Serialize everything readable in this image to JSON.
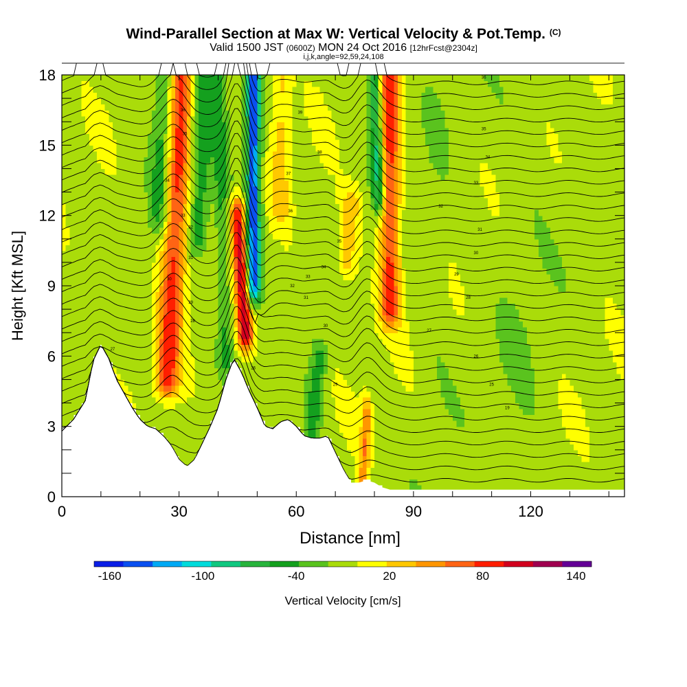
{
  "title": {
    "main": "Wind-Parallel Section at Max W: Vertical Velocity & Pot.Temp.",
    "mark": "(C)",
    "valid_a": "Valid 1500 JST",
    "valid_utc": "(0600Z)",
    "valid_b": "MON 24 Oct 2016",
    "valid_fcst": "[12hrFcst@2304z]",
    "indices": "i,j,k,angle=92,59,24,108"
  },
  "chart_data": {
    "type": "heatmap",
    "xlabel": "Distance [nm]",
    "ylabel": "Height [Kft MSL]",
    "xlim": [
      0,
      144
    ],
    "ylim": [
      0,
      18
    ],
    "x_ticks": [
      0,
      30,
      60,
      90,
      120
    ],
    "y_ticks": [
      0,
      3,
      6,
      9,
      12,
      15,
      18
    ],
    "contour_variable": "potential temperature (C)",
    "colorbar": {
      "label": "Vertical Velocity [cm/s]",
      "tick_labels": [
        -160,
        -100,
        -40,
        20,
        80,
        140
      ],
      "levels": [
        -170,
        -150,
        -130,
        -110,
        -90,
        -70,
        -50,
        -30,
        -10,
        10,
        30,
        50,
        70,
        90,
        110,
        130,
        150
      ],
      "colors": [
        "#0a1ee6",
        "#0a50f0",
        "#00aaf5",
        "#00dcdc",
        "#10c880",
        "#28b43c",
        "#14a01e",
        "#5ac31e",
        "#aadc0a",
        "#ffff00",
        "#ffc800",
        "#ff9600",
        "#ff6414",
        "#ff1e00",
        "#d2001e",
        "#a00050",
        "#640096"
      ]
    },
    "terrain_kft": [
      [
        0,
        2.8
      ],
      [
        3,
        3.3
      ],
      [
        6,
        4.1
      ],
      [
        8,
        5.8
      ],
      [
        10,
        6.5
      ],
      [
        12,
        5.9
      ],
      [
        14,
        5.0
      ],
      [
        16,
        4.4
      ],
      [
        18,
        3.8
      ],
      [
        20,
        3.3
      ],
      [
        22,
        3.0
      ],
      [
        24,
        2.9
      ],
      [
        26,
        2.6
      ],
      [
        28,
        2.2
      ],
      [
        30,
        1.6
      ],
      [
        32,
        1.3
      ],
      [
        34,
        1.6
      ],
      [
        36,
        2.3
      ],
      [
        38,
        3.0
      ],
      [
        40,
        3.8
      ],
      [
        42,
        5.0
      ],
      [
        44,
        5.9
      ],
      [
        46,
        5.3
      ],
      [
        48,
        4.5
      ],
      [
        50,
        3.8
      ],
      [
        52,
        3.0
      ],
      [
        54,
        2.9
      ],
      [
        56,
        3.2
      ],
      [
        58,
        3.3
      ],
      [
        60,
        3.0
      ],
      [
        62,
        2.6
      ],
      [
        64,
        2.5
      ],
      [
        66,
        2.5
      ],
      [
        68,
        2.6
      ],
      [
        70,
        1.9
      ],
      [
        72,
        1.2
      ],
      [
        74,
        0.6
      ],
      [
        76,
        0.6
      ],
      [
        78,
        0.7
      ],
      [
        80,
        0.6
      ],
      [
        82,
        0.4
      ],
      [
        84,
        0.3
      ],
      [
        90,
        0.3
      ],
      [
        110,
        0.3
      ],
      [
        125,
        0.3
      ],
      [
        140,
        0.3
      ],
      [
        144,
        0.3
      ]
    ],
    "updrafts": [
      {
        "x_bottom": 27,
        "z_bottom": 5.0,
        "x_top": 31,
        "z_top": 18,
        "w_cm_s": 95,
        "width_nm": 3.0
      },
      {
        "x_bottom": 47,
        "z_bottom": 7.0,
        "x_top": 45,
        "z_top": 12,
        "w_cm_s": 120,
        "width_nm": 2.0
      },
      {
        "x_bottom": 84,
        "z_bottom": 8.0,
        "x_top": 84,
        "z_top": 18,
        "w_cm_s": 95,
        "width_nm": 2.5
      },
      {
        "x_bottom": 77,
        "z_bottom": 0.5,
        "x_top": 78,
        "z_top": 3.5,
        "w_cm_s": 60,
        "width_nm": 1.2
      },
      {
        "x_bottom": 73,
        "z_bottom": 10.0,
        "x_top": 74,
        "z_top": 12.5,
        "w_cm_s": 40,
        "width_nm": 2.5
      },
      {
        "x_bottom": 56,
        "z_bottom": 12.5,
        "x_top": 56,
        "z_top": 18,
        "w_cm_s": 35,
        "width_nm": 2.5
      }
    ],
    "downdrafts": [
      {
        "x_bottom": 49,
        "z_bottom": 9.0,
        "x_top": 49,
        "z_top": 18,
        "w_cm_s": -150,
        "width_nm": 1.8
      },
      {
        "x_bottom": 81,
        "z_bottom": 13.0,
        "x_top": 80,
        "z_top": 18,
        "w_cm_s": -80,
        "width_nm": 1.5
      },
      {
        "x_bottom": 35,
        "z_bottom": 11.0,
        "x_top": 36,
        "z_top": 18,
        "w_cm_s": -45,
        "width_nm": 2.5
      },
      {
        "x_bottom": 25,
        "z_bottom": 12.0,
        "x_top": 26,
        "z_top": 18,
        "w_cm_s": -40,
        "width_nm": 2.5
      },
      {
        "x_bottom": 64,
        "z_bottom": 3.0,
        "x_top": 66,
        "z_top": 6.0,
        "w_cm_s": -45,
        "width_nm": 2.0
      },
      {
        "x_bottom": 42,
        "z_bottom": 6.0,
        "x_top": 40,
        "z_top": 18,
        "w_cm_s": -35,
        "width_nm": 2.0
      }
    ],
    "isentrope_count": 34,
    "isentrope_labels": [
      {
        "x": 31.0,
        "z": 16.5,
        "text": "36"
      },
      {
        "x": 31.5,
        "z": 15.5,
        "text": "35"
      },
      {
        "x": 27.0,
        "z": 13.5,
        "text": "34"
      },
      {
        "x": 31.0,
        "z": 12.0,
        "text": "33"
      },
      {
        "x": 33.0,
        "z": 11.5,
        "text": "32"
      },
      {
        "x": 33.0,
        "z": 10.2,
        "text": "31"
      },
      {
        "x": 27.5,
        "z": 9.3,
        "text": "30"
      },
      {
        "x": 33.0,
        "z": 8.3,
        "text": "29"
      },
      {
        "x": 33.5,
        "z": 7.5,
        "text": "28"
      },
      {
        "x": 13.0,
        "z": 6.3,
        "text": "27"
      },
      {
        "x": 49.0,
        "z": 5.5,
        "text": "26"
      },
      {
        "x": 61.0,
        "z": 16.4,
        "text": "39"
      },
      {
        "x": 66.0,
        "z": 14.7,
        "text": "38"
      },
      {
        "x": 58.0,
        "z": 13.8,
        "text": "37"
      },
      {
        "x": 58.5,
        "z": 12.2,
        "text": "36"
      },
      {
        "x": 71.0,
        "z": 10.9,
        "text": "35"
      },
      {
        "x": 67.0,
        "z": 9.8,
        "text": "34"
      },
      {
        "x": 63.0,
        "z": 9.4,
        "text": "33"
      },
      {
        "x": 59.0,
        "z": 9.0,
        "text": "32"
      },
      {
        "x": 62.5,
        "z": 8.5,
        "text": "31"
      },
      {
        "x": 67.5,
        "z": 7.3,
        "text": "30"
      },
      {
        "x": 70.0,
        "z": 4.8,
        "text": "29"
      },
      {
        "x": 108.0,
        "z": 17.9,
        "text": "36"
      },
      {
        "x": 108.0,
        "z": 15.7,
        "text": "35"
      },
      {
        "x": 109.0,
        "z": 14.5,
        "text": "34"
      },
      {
        "x": 106.0,
        "z": 13.4,
        "text": "33"
      },
      {
        "x": 97.0,
        "z": 12.4,
        "text": "32"
      },
      {
        "x": 107.0,
        "z": 11.4,
        "text": "31"
      },
      {
        "x": 106.0,
        "z": 10.4,
        "text": "30"
      },
      {
        "x": 101.0,
        "z": 9.5,
        "text": "29"
      },
      {
        "x": 104.0,
        "z": 8.5,
        "text": "28"
      },
      {
        "x": 94.0,
        "z": 7.1,
        "text": "27"
      },
      {
        "x": 106.0,
        "z": 6.0,
        "text": "26"
      },
      {
        "x": 110.0,
        "z": 4.8,
        "text": "25"
      },
      {
        "x": 114.0,
        "z": 3.8,
        "text": "19"
      }
    ]
  }
}
